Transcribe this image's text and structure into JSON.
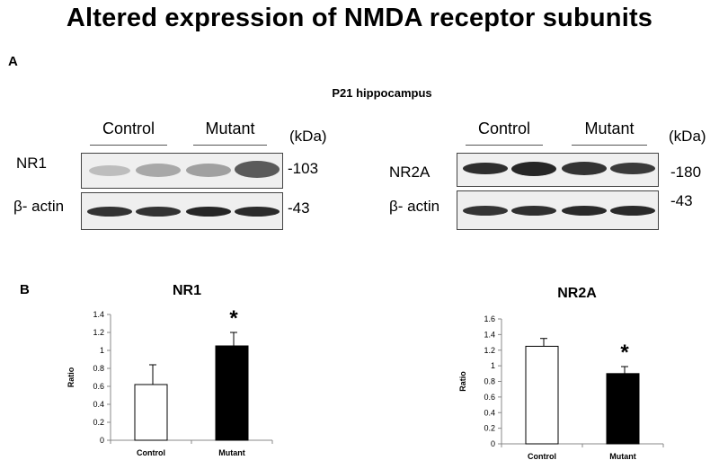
{
  "figure_title": "Altered expression of NMDA receptor subunits",
  "panel_a": {
    "letter": "A",
    "subtitle": "P21 hippocampus",
    "group_control": "Control",
    "group_mutant": "Mutant",
    "unit": "(kDa)",
    "left_blot": {
      "target_label": "NR1",
      "target_marker": "-103",
      "loading_label": "β- actin",
      "loading_marker": "-43"
    },
    "right_blot": {
      "target_label": "NR2A",
      "target_marker": "-180",
      "loading_label": "β- actin",
      "loading_marker": "-43"
    }
  },
  "panel_b": {
    "letter": "B",
    "significance_marker": "*"
  },
  "chart_data": [
    {
      "type": "bar",
      "title": "NR1",
      "categories": [
        "Control",
        "Mutant"
      ],
      "values": [
        0.62,
        1.05
      ],
      "errors": [
        0.22,
        0.15
      ],
      "bar_fills": [
        "#ffffff",
        "#000000"
      ],
      "ylabel": "Ratio",
      "xlabel": "",
      "ylim": [
        0,
        1.4
      ],
      "yticks": [
        "0",
        "0.2",
        "0.4",
        "0.6",
        "0.8",
        "1",
        "1.2",
        "1.4"
      ],
      "significant": [
        false,
        true
      ],
      "grid": false
    },
    {
      "type": "bar",
      "title": "NR2A",
      "categories": [
        "Control",
        "Mutant"
      ],
      "values": [
        1.25,
        0.9
      ],
      "errors": [
        0.1,
        0.09
      ],
      "bar_fills": [
        "#ffffff",
        "#000000"
      ],
      "ylabel": "Ratio",
      "xlabel": "",
      "ylim": [
        0,
        1.6
      ],
      "yticks": [
        "0",
        "0.2",
        "0.4",
        "0.6",
        "0.8",
        "1",
        "1.2",
        "1.4",
        "1.6"
      ],
      "significant": [
        false,
        true
      ],
      "grid": false
    }
  ]
}
